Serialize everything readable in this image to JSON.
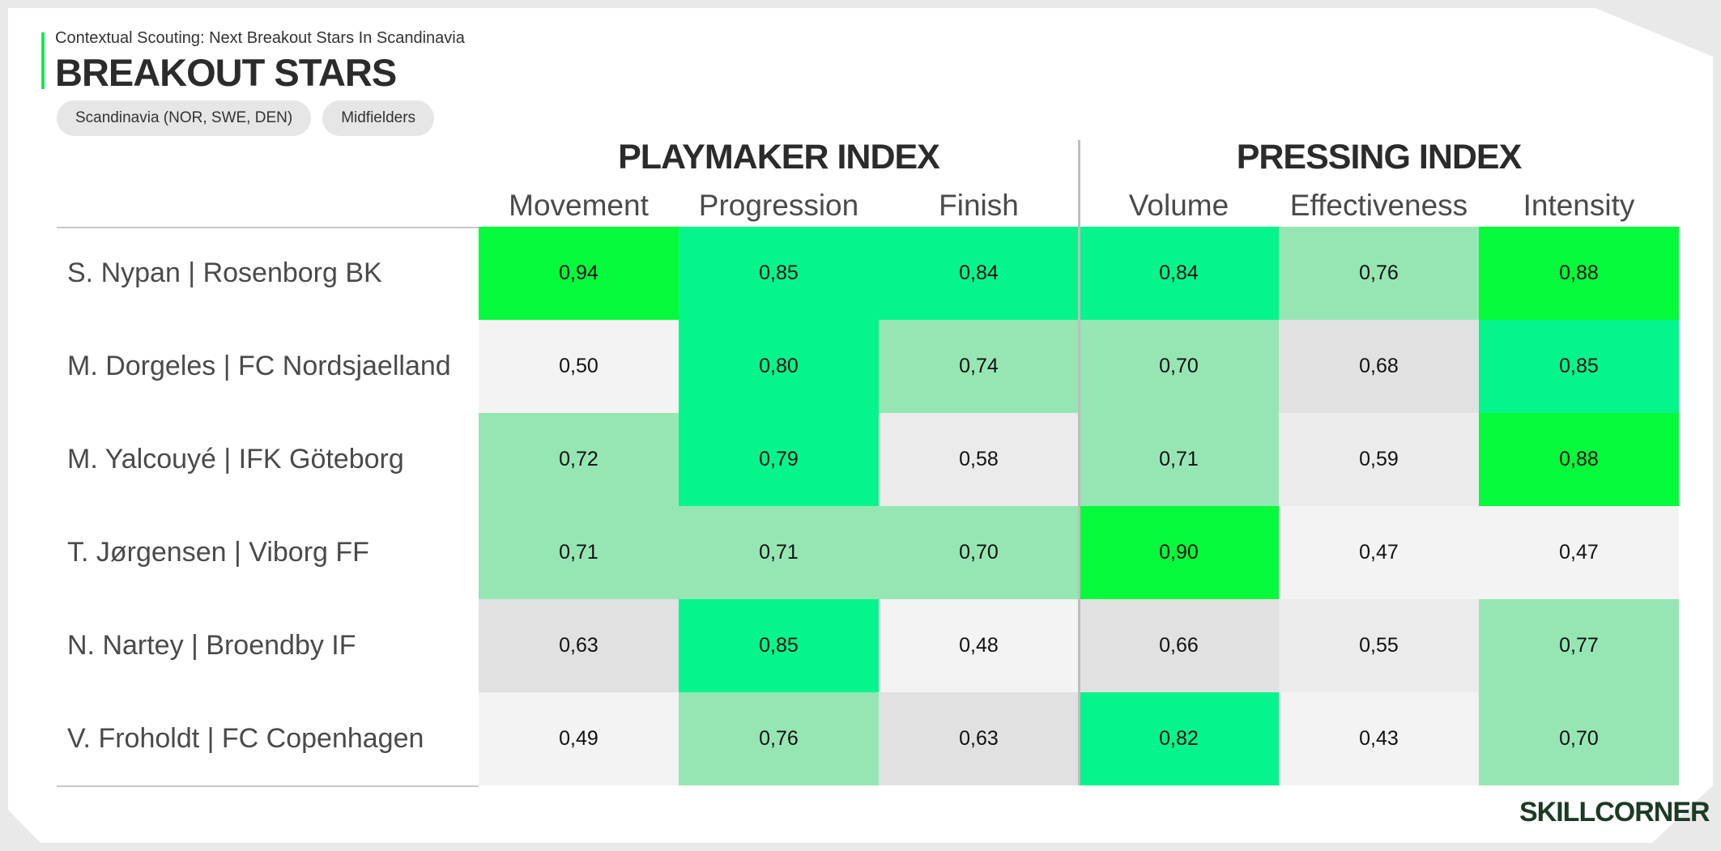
{
  "header": {
    "subtitle": "Contextual Scouting: Next Breakout Stars In Scandinavia",
    "title": "BREAKOUT STARS",
    "filters": [
      "Scandinavia (NOR, SWE, DEN)",
      "Midfielders"
    ]
  },
  "chart_data": {
    "type": "heatmap",
    "groups": [
      {
        "name": "PLAYMAKER INDEX",
        "columns": [
          "Movement",
          "Progression",
          "Finish"
        ]
      },
      {
        "name": "PRESSING INDEX",
        "columns": [
          "Volume",
          "Effectiveness",
          "Intensity"
        ]
      }
    ],
    "columns": [
      "Movement",
      "Progression",
      "Finish",
      "Volume",
      "Effectiveness",
      "Intensity"
    ],
    "rows": [
      {
        "player": "S. Nypan | Rosenborg BK",
        "values": [
          "0,94",
          "0,85",
          "0,84",
          "0,84",
          "0,76",
          "0,88"
        ],
        "colors": [
          "#05fa3c",
          "#05f58c",
          "#05f58c",
          "#05f58c",
          "#96e6b4",
          "#05fa3c"
        ]
      },
      {
        "player": "M. Dorgeles | FC Nordsjaelland",
        "values": [
          "0,50",
          "0,80",
          "0,74",
          "0,70",
          "0,68",
          "0,85"
        ],
        "colors": [
          "#f3f3f3",
          "#05f58c",
          "#96e6b4",
          "#96e6b4",
          "#e1e1e1",
          "#05f58c"
        ]
      },
      {
        "player": "M. Yalcouyé | IFK Göteborg",
        "values": [
          "0,72",
          "0,79",
          "0,58",
          "0,71",
          "0,59",
          "0,88"
        ],
        "colors": [
          "#96e6b4",
          "#05f58c",
          "#ebebeb",
          "#96e6b4",
          "#ebebeb",
          "#05fa3c"
        ]
      },
      {
        "player": "T. Jørgensen | Viborg FF",
        "values": [
          "0,71",
          "0,71",
          "0,70",
          "0,90",
          "0,47",
          "0,47"
        ],
        "colors": [
          "#96e6b4",
          "#96e6b4",
          "#96e6b4",
          "#05fa3c",
          "#f3f3f3",
          "#f3f3f3"
        ]
      },
      {
        "player": "N. Nartey | Broendby IF",
        "values": [
          "0,63",
          "0,85",
          "0,48",
          "0,66",
          "0,55",
          "0,77"
        ],
        "colors": [
          "#e1e1e1",
          "#05f58c",
          "#f3f3f3",
          "#e1e1e1",
          "#ebebeb",
          "#96e6b4"
        ]
      },
      {
        "player": "V. Froholdt | FC Copenhagen",
        "values": [
          "0,49",
          "0,76",
          "0,63",
          "0,82",
          "0,43",
          "0,70"
        ],
        "colors": [
          "#f3f3f3",
          "#96e6b4",
          "#e1e1e1",
          "#05f58c",
          "#f3f3f3",
          "#96e6b4"
        ]
      }
    ]
  },
  "branding": {
    "logo_text": "SKILLCORNER"
  },
  "colors": {
    "accent": "#19e65a",
    "top": "#05fa3c",
    "high": "#05f58c",
    "mid": "#96e6b4",
    "low": "#f3f3f3"
  }
}
